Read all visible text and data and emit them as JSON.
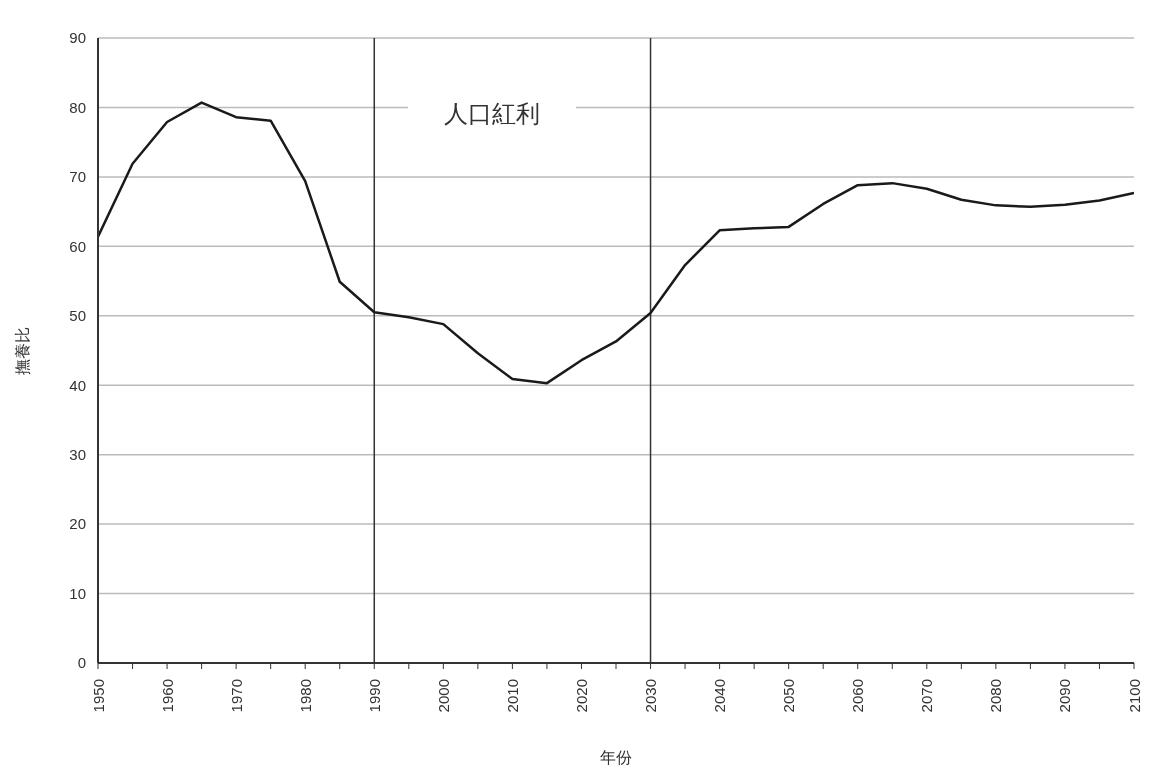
{
  "chart_data": {
    "type": "line",
    "xlabel": "年份",
    "ylabel": "撫養比",
    "x": [
      1950,
      1955,
      1960,
      1965,
      1970,
      1975,
      1980,
      1985,
      1990,
      1995,
      2000,
      2005,
      2010,
      2015,
      2020,
      2025,
      2030,
      2035,
      2040,
      2045,
      2050,
      2055,
      2060,
      2065,
      2070,
      2075,
      2080,
      2085,
      2090,
      2095,
      2100
    ],
    "series": [
      {
        "color": "#1a1a1a",
        "values": [
          61.4,
          71.9,
          77.9,
          80.7,
          78.6,
          78.1,
          69.4,
          54.9,
          50.5,
          49.8,
          48.8,
          44.6,
          40.9,
          40.3,
          43.6,
          46.3,
          50.4,
          57.3,
          62.3,
          62.6,
          62.8,
          66.1,
          68.8,
          69.1,
          68.3,
          66.7,
          65.9,
          65.7,
          66.0,
          66.6,
          67.7
        ]
      }
    ],
    "xlim": [
      1950,
      2100
    ],
    "xticks": [
      1950,
      {
        "value": 1955,
        "label": null
      },
      1960,
      {
        "value": 1965,
        "label": null
      },
      1970,
      {
        "value": 1975,
        "label": null
      },
      1980,
      {
        "value": 1985,
        "label": null
      },
      1990,
      {
        "value": 1995,
        "label": null
      },
      2000,
      {
        "value": 2005,
        "label": null
      },
      2010,
      {
        "value": 2015,
        "label": null
      },
      2020,
      {
        "value": 2025,
        "label": null
      },
      2030,
      {
        "value": 2035,
        "label": null
      },
      2040,
      {
        "value": 2045,
        "label": null
      },
      2050,
      {
        "value": 2055,
        "label": null
      },
      2060,
      {
        "value": 2065,
        "label": null
      },
      2070,
      {
        "value": 2075,
        "label": null
      },
      2080,
      {
        "value": 2085,
        "label": null
      },
      2090,
      {
        "value": 2095,
        "label": null
      },
      2100
    ],
    "ylim": [
      0,
      90
    ],
    "yticks": [
      0,
      10,
      20,
      30,
      40,
      50,
      60,
      70,
      80,
      90
    ],
    "grid": "y",
    "marker": "none",
    "line_style": "solid",
    "ref_lines": [
      {
        "axis": "x",
        "value": 1990,
        "color": "#333333"
      },
      {
        "axis": "x",
        "value": 2030,
        "color": "#333333"
      }
    ],
    "annotations": [
      "人口紅利"
    ]
  }
}
